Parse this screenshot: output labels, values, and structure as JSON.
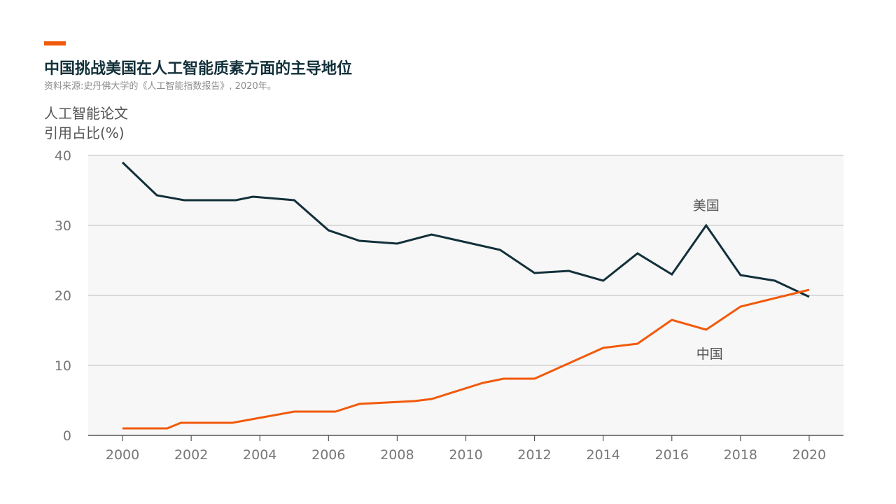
{
  "header": {
    "title": "中国挑战美国在人工智能质素方面的主导地位",
    "source": "资料来源:史丹佛大学的《人工智能指数报告》, 2020年。"
  },
  "colors": {
    "accent": "#f15a0b",
    "us": "#12303a",
    "china": "#f15a0b",
    "plot_bg": "#f7f7f7",
    "grid": "#bbbbbb"
  },
  "chart_data": {
    "type": "line",
    "ylabel_lines": [
      "人工智能论文",
      "引用占比(%)"
    ],
    "xlabel": "",
    "xlim": [
      1999,
      2021
    ],
    "ylim": [
      0,
      40
    ],
    "yticks": [
      0,
      10,
      20,
      30,
      40
    ],
    "xticks": [
      2000,
      2002,
      2004,
      2006,
      2008,
      2010,
      2012,
      2014,
      2016,
      2018,
      2020
    ],
    "grid": true,
    "series": [
      {
        "name": "美国",
        "color": "#12303a",
        "x": [
          2000,
          2001,
          2001.8,
          2003.3,
          2003.8,
          2005,
          2006,
          2006.9,
          2008,
          2009,
          2010,
          2011,
          2012,
          2013,
          2014,
          2015,
          2016,
          2017,
          2018,
          2019,
          2020
        ],
        "y": [
          39.0,
          34.3,
          33.6,
          33.6,
          34.1,
          33.6,
          29.3,
          27.8,
          27.4,
          28.7,
          27.6,
          26.5,
          23.2,
          23.5,
          22.1,
          26.0,
          23.0,
          30.0,
          22.9,
          22.1,
          19.8
        ]
      },
      {
        "name": "中国",
        "color": "#f15a0b",
        "x": [
          2000,
          2001.3,
          2001.7,
          2003.2,
          2005,
          2006.2,
          2006.9,
          2008.5,
          2009,
          2010.5,
          2011.1,
          2012,
          2013,
          2014,
          2015,
          2016,
          2017,
          2018,
          2019,
          2020
        ],
        "y": [
          1.0,
          1.0,
          1.8,
          1.8,
          3.4,
          3.4,
          4.5,
          4.9,
          5.2,
          7.5,
          8.1,
          8.1,
          10.3,
          12.5,
          13.1,
          16.5,
          15.1,
          18.4,
          19.6,
          20.8
        ]
      }
    ],
    "annotations": [
      {
        "text": "美国",
        "series": "美国",
        "x": 2017,
        "y": 32.2
      },
      {
        "text": "中国",
        "series": "中国",
        "x": 2017.1,
        "y": 11.0
      }
    ]
  }
}
